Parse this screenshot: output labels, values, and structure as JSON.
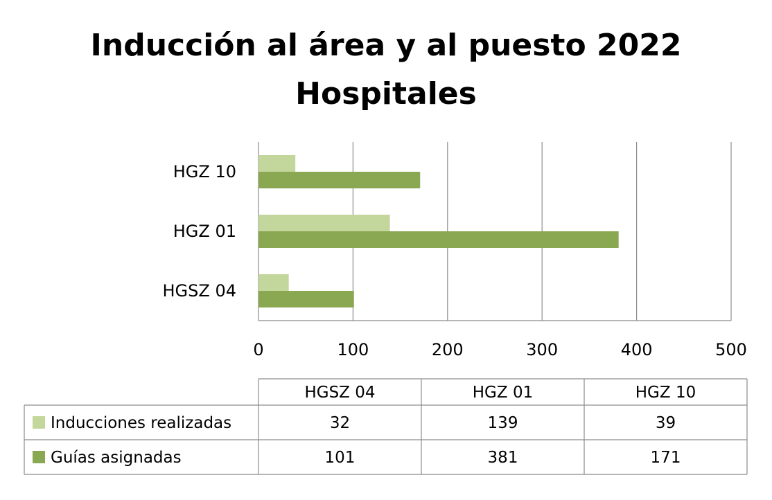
{
  "title_lines": [
    "Inducción al área y al puesto 2022",
    "Hospitales"
  ],
  "chart_data": {
    "type": "bar",
    "orientation": "horizontal",
    "title": "Inducción al área y al puesto 2022 Hospitales",
    "categories": [
      "HGSZ 04",
      "HGZ 01",
      "HGZ 10"
    ],
    "series": [
      {
        "name": "Inducciones realizadas",
        "values": [
          32,
          139,
          39
        ],
        "color": "#c3d69b"
      },
      {
        "name": "Guías asignadas",
        "values": [
          101,
          381,
          171
        ],
        "color": "#8aa752"
      }
    ],
    "xlim": [
      0,
      500
    ],
    "xticks": [
      0,
      100,
      200,
      300,
      400,
      500
    ],
    "grid": true,
    "legend": "data table below chart"
  }
}
